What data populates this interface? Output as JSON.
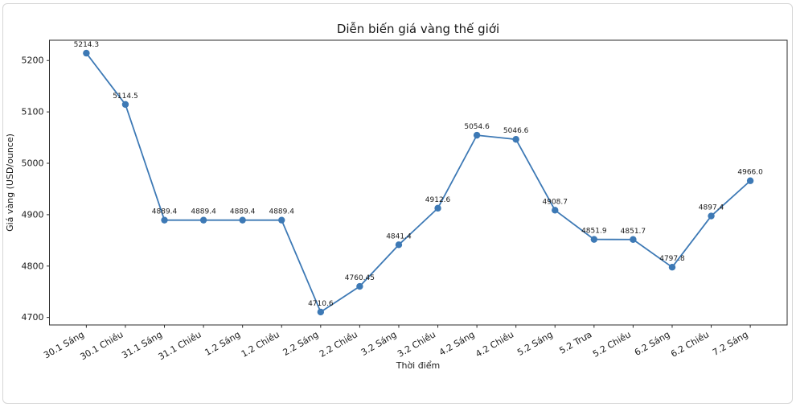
{
  "chart_data": {
    "type": "line",
    "title": "Diễn biến giá vàng thế giới",
    "xlabel": "Thời điểm",
    "ylabel": "Giá vàng (USD/ounce)",
    "categories": [
      "30.1 Sáng",
      "30.1 Chiều",
      "31.1 Sáng",
      "31.1 Chiều",
      "1.2 Sáng",
      "1.2 Chiều",
      "2.2 Sáng",
      "2.2 Chiều",
      "3.2 Sáng",
      "3.2 Chiều",
      "4.2 Sáng",
      "4.2 Chiều",
      "5.2 Sáng",
      "5.2 Trưa",
      "5.2 Chiều",
      "6.2 Sáng",
      "6.2 Chiều",
      "7.2 Sáng"
    ],
    "values": [
      5214.3,
      5114.5,
      4889.4,
      4889.4,
      4889.4,
      4889.4,
      4710.6,
      4760.45,
      4841.4,
      4912.6,
      5054.6,
      5046.6,
      4908.7,
      4851.9,
      4851.7,
      4797.8,
      4897.4,
      4966.0
    ],
    "point_labels": [
      "5214.3",
      "5114.5",
      "4889.4",
      "4889.4",
      "4889.4",
      "4889.4",
      "4710.6",
      "4760.45",
      "4841.4",
      "4912.6",
      "5054.6",
      "5046.6",
      "4908.7",
      "4851.9",
      "4851.7",
      "4797.8",
      "4897.4",
      "4966.0"
    ],
    "yticks": [
      4700,
      4800,
      4900,
      5000,
      5100,
      5200
    ],
    "ylim": [
      4685.4,
      5239.5
    ],
    "x_margin_frac": 0.05,
    "grid": false,
    "legend": "none",
    "line_color": "#3d79b5",
    "marker_color": "#3d79b5",
    "marker": "circle",
    "spine_color": "#2b2b2b"
  }
}
